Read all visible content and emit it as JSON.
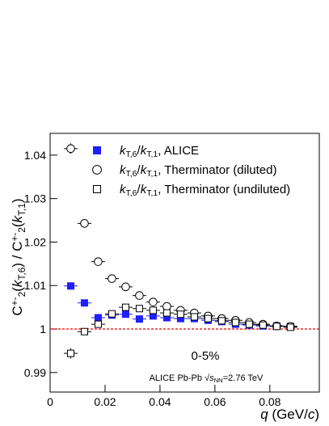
{
  "chart_data": {
    "type": "errorbar",
    "x_label": [
      {
        "text": "q",
        "italic": true
      },
      {
        "text": " (GeV/"
      },
      {
        "text": "c",
        "italic": true
      },
      {
        "text": ")"
      }
    ],
    "y_label": [
      {
        "text": "C"
      },
      {
        "text": "+-",
        "shift": "super"
      },
      {
        "text": "2",
        "shift": "sub"
      },
      {
        "text": "("
      },
      {
        "text": "k",
        "italic": true
      },
      {
        "text": "T,6",
        "shift": "sub"
      },
      {
        "text": ") / C"
      },
      {
        "text": "+-",
        "shift": "super"
      },
      {
        "text": "2",
        "shift": "sub"
      },
      {
        "text": "("
      },
      {
        "text": "k",
        "italic": true
      },
      {
        "text": "T,1",
        "shift": "sub"
      },
      {
        "text": ")"
      }
    ],
    "annotations": [
      [
        {
          "text": "0-5%"
        }
      ],
      [
        {
          "text": "ALICE Pb-Pb "
        },
        {
          "text": "√"
        },
        {
          "text": "s",
          "italic": true
        },
        {
          "text": "NN",
          "shift": "sub"
        },
        {
          "text": "=2.76 TeV"
        }
      ]
    ],
    "x": [
      0.0075,
      0.0125,
      0.0175,
      0.0225,
      0.0275,
      0.0325,
      0.0375,
      0.0425,
      0.0475,
      0.0525,
      0.0575,
      0.0625,
      0.0675,
      0.0725,
      0.0775,
      0.0825,
      0.0875
    ],
    "xerr": 0.0025,
    "series": [
      {
        "name": [
          {
            "text": "k",
            "italic": true
          },
          {
            "text": "T,6",
            "shift": "sub"
          },
          {
            "text": "/"
          },
          {
            "text": "k",
            "italic": true
          },
          {
            "text": "T,1",
            "shift": "sub"
          },
          {
            "text": ", ALICE"
          }
        ],
        "marker": "square-filled",
        "color": "#1f1fff",
        "values": [
          1.0099,
          1.006,
          1.0026,
          1.0032,
          1.0034,
          1.0023,
          1.003,
          1.0026,
          1.0024,
          1.0024,
          1.002,
          1.0017,
          1.0011,
          1.0009,
          1.0007,
          1.0007,
          1.0006
        ],
        "errors": [
          0.0007,
          0.0005,
          0.0004,
          0.0003,
          0.0003,
          0.0003,
          0.0003,
          0.0003,
          0.0003,
          0.0003,
          0.0003,
          0.0003,
          0.0003,
          0.0003,
          0.0003,
          0.0003,
          0.0003
        ]
      },
      {
        "name": [
          {
            "text": "k",
            "italic": true
          },
          {
            "text": "T,6",
            "shift": "sub"
          },
          {
            "text": "/"
          },
          {
            "text": "k",
            "italic": true
          },
          {
            "text": "T,1",
            "shift": "sub"
          },
          {
            "text": ", Therminator (diluted)"
          }
        ],
        "marker": "circle-open",
        "color": "#000000",
        "values": [
          1.0415,
          1.0243,
          1.0155,
          1.0116,
          1.0097,
          1.0077,
          1.0062,
          1.0052,
          1.0043,
          1.0037,
          1.003,
          1.0024,
          1.002,
          1.0015,
          1.0011,
          1.0007,
          1.0006
        ],
        "errors": [
          0.0012,
          0.0005,
          0.0004,
          0.0003,
          0.0003,
          0.0003,
          0.0003,
          0.0003,
          0.0003,
          0.0003,
          0.0003,
          0.0003,
          0.0003,
          0.0003,
          0.0003,
          0.0003,
          0.0003
        ]
      },
      {
        "name": [
          {
            "text": "k",
            "italic": true
          },
          {
            "text": "T,6",
            "shift": "sub"
          },
          {
            "text": "/"
          },
          {
            "text": "k",
            "italic": true
          },
          {
            "text": "T,1",
            "shift": "sub"
          },
          {
            "text": ", Therminator (undiluted)"
          }
        ],
        "marker": "square-open",
        "color": "#000000",
        "values": [
          0.9944,
          0.9994,
          1.0011,
          1.0035,
          1.005,
          1.0047,
          1.0043,
          1.0037,
          1.0034,
          1.0028,
          1.0024,
          1.0019,
          1.0015,
          1.0011,
          1.0009,
          1.0006,
          1.0004
        ],
        "errors": [
          0.0012,
          0.0005,
          0.0004,
          0.0003,
          0.0003,
          0.0003,
          0.0003,
          0.0003,
          0.0003,
          0.0003,
          0.0003,
          0.0003,
          0.0003,
          0.0003,
          0.0003,
          0.0003,
          0.0003
        ]
      }
    ],
    "xlim": [
      0,
      0.098
    ],
    "ylim": [
      0.9855,
      1.045
    ],
    "xticks": [
      0,
      0.02,
      0.04,
      0.06,
      0.08
    ],
    "yticks": [
      0.99,
      1,
      1.01,
      1.02,
      1.03,
      1.04
    ],
    "reference_line": {
      "value": 1,
      "color": "#e00000"
    }
  }
}
